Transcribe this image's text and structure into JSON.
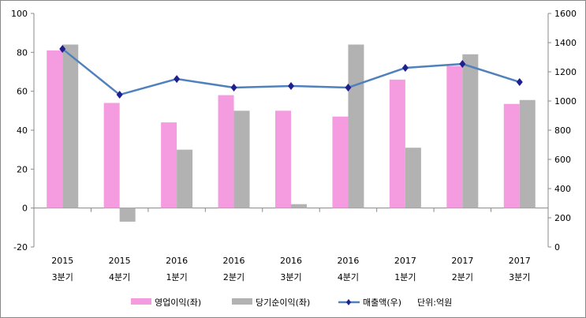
{
  "chart_data": {
    "type": "bar+line",
    "categories": [
      {
        "year": "2015",
        "quarter": "3분기"
      },
      {
        "year": "2015",
        "quarter": "4분기"
      },
      {
        "year": "2016",
        "quarter": "1분기"
      },
      {
        "year": "2016",
        "quarter": "2분기"
      },
      {
        "year": "2016",
        "quarter": "3분기"
      },
      {
        "year": "2016",
        "quarter": "4분기"
      },
      {
        "year": "2017",
        "quarter": "1분기"
      },
      {
        "year": "2017",
        "quarter": "2분기"
      },
      {
        "year": "2017",
        "quarter": "3분기"
      }
    ],
    "series": [
      {
        "name": "영업이익(좌)",
        "type": "bar",
        "axis": "left",
        "color": "#F59BE0",
        "values": [
          81,
          54,
          44,
          58,
          50,
          47,
          66,
          73,
          53.5
        ]
      },
      {
        "name": "당기순이익(좌)",
        "type": "bar",
        "axis": "left",
        "color": "#B2B2B2",
        "values": [
          84,
          -7,
          30,
          50,
          2,
          84,
          31,
          79,
          55.5
        ]
      },
      {
        "name": "매출액(우)",
        "type": "line",
        "axis": "right",
        "color": "#4F81BD",
        "marker_color": "#1F1F8F",
        "values": [
          1357,
          1043,
          1151,
          1092,
          1103,
          1092,
          1227,
          1254,
          1130
        ]
      }
    ],
    "left_axis": {
      "min": -20,
      "max": 100,
      "step": 20,
      "ticks": [
        "-20",
        "0",
        "20",
        "40",
        "60",
        "80",
        "100"
      ]
    },
    "right_axis": {
      "min": 0,
      "max": 1600,
      "step": 200,
      "ticks": [
        "0",
        "200",
        "400",
        "600",
        "800",
        "1000",
        "1200",
        "1400",
        "1600"
      ]
    },
    "unit_note": "단위:억원",
    "legend_placement": "bottom",
    "grid": false
  }
}
